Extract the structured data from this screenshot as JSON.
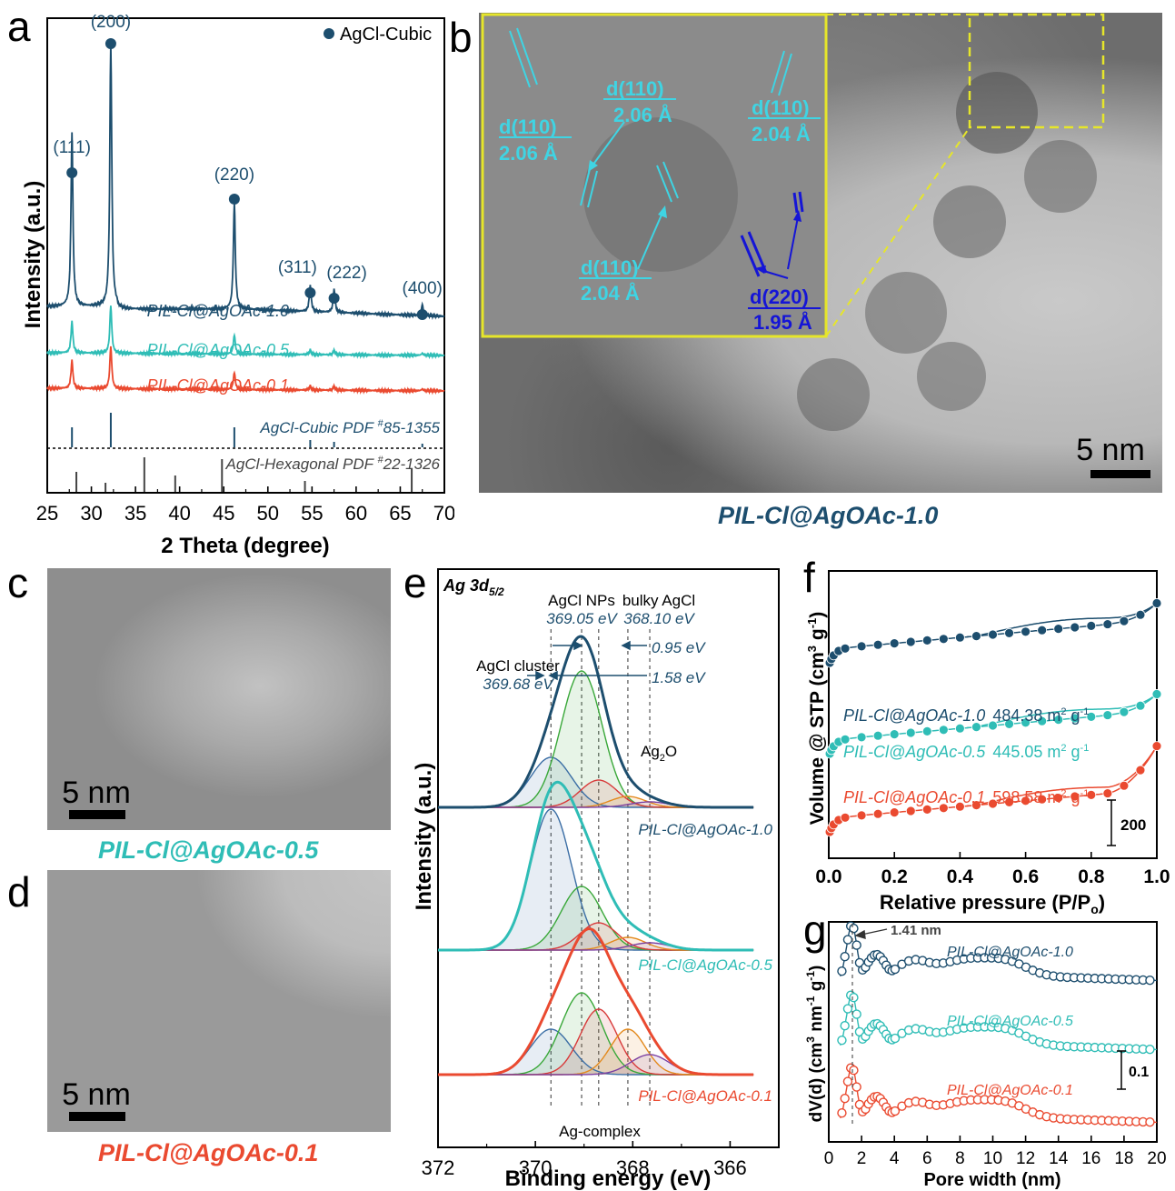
{
  "panels": {
    "a": "a",
    "b": "b",
    "c": "c",
    "d": "d",
    "e": "e",
    "f": "f",
    "g": "g"
  },
  "colors": {
    "navy": "#1d4e6e",
    "teal": "#2fbdb6",
    "red": "#ea4a30",
    "blue": "#1515d6",
    "yellow": "#e6e62a",
    "cyan": "#3fd4e3"
  },
  "panel_b": {
    "scale_bar": "5 nm",
    "caption": "PIL-Cl@AgOAc-1.0",
    "annotations": [
      {
        "top": "d(110)",
        "bottom": "2.06 Å"
      },
      {
        "top": "d(110)",
        "bottom": "2.06 Å"
      },
      {
        "top": "d(110)",
        "bottom": "2.04 Å"
      },
      {
        "top": "d(110)",
        "bottom": "2.04 Å"
      },
      {
        "top": "d(220)",
        "bottom": "1.95 Å"
      }
    ]
  },
  "panel_c": {
    "scale_bar": "5 nm",
    "caption": "PIL-Cl@AgOAc-0.5"
  },
  "panel_d": {
    "scale_bar": "5 nm",
    "caption": "PIL-Cl@AgOAc-0.1"
  },
  "chart_data": [
    {
      "id": "a",
      "type": "line",
      "xlabel": "2 Theta (degree)",
      "ylabel": "Intensity (a.u.)",
      "xlim": [
        25,
        70
      ],
      "xticks": [
        25,
        30,
        35,
        40,
        45,
        50,
        55,
        60,
        65,
        70
      ],
      "legend": "AgCl-Cubic",
      "legend_position": "top-right",
      "series": [
        {
          "name": "PIL-Cl@AgOAc-1.0",
          "color": "#1d4e6e"
        },
        {
          "name": "PIL-Cl@AgOAc-0.5",
          "color": "#2fbdb6"
        },
        {
          "name": "PIL-Cl@AgOAc-0.1",
          "color": "#ea4a30"
        }
      ],
      "peaks": [
        {
          "label": "(111)",
          "x": 27.8
        },
        {
          "label": "(200)",
          "x": 32.2
        },
        {
          "label": "(220)",
          "x": 46.2
        },
        {
          "label": "(311)",
          "x": 54.8
        },
        {
          "label": "(222)",
          "x": 57.5
        },
        {
          "label": "(400)",
          "x": 67.5
        }
      ],
      "references": [
        {
          "name": "AgCl-Cubic PDF #85-1355",
          "prefix": "AgCl-Cubic PDF ",
          "sup": "#",
          "num": "85-1355",
          "lines": [
            27.8,
            32.2,
            46.2,
            54.8,
            57.5,
            67.5
          ]
        },
        {
          "name": "AgCl-Hexagonal PDF #22-1326",
          "prefix": "AgCl-Hexagonal PDF ",
          "sup": "#",
          "num": "22-1326",
          "lines": [
            28.3,
            31.6,
            36.0,
            39.5,
            44.8,
            54.2,
            66.3
          ]
        }
      ]
    },
    {
      "id": "e",
      "type": "line",
      "title": "Ag 3d",
      "title_sub": "5/2",
      "xlabel": "Binding energy (eV)",
      "ylabel": "Intensity (a.u.)",
      "xlim": [
        372,
        365
      ],
      "xticks": [
        372,
        370,
        368,
        366
      ],
      "annotations": {
        "agcl_nps": "AgCl NPs",
        "agcl_nps_energy": "369.05 eV",
        "bulky": "bulky AgCl",
        "bulky_energy": "368.10 eV",
        "cluster": "AgCl cluster",
        "cluster_energy": "369.68 eV",
        "diff1": "0.95 eV",
        "diff2": "1.58 eV",
        "ag2o": "Ag",
        "ag2o_sub": "2",
        "ag2o_end": "O",
        "complex": "Ag-complex"
      },
      "reference_lines": [
        369.68,
        369.05,
        368.7,
        368.1,
        367.65
      ],
      "series": [
        {
          "name": "PIL-Cl@AgOAc-1.0",
          "color": "#1d4e6e"
        },
        {
          "name": "PIL-Cl@AgOAc-0.5",
          "color": "#2fbdb6"
        },
        {
          "name": "PIL-Cl@AgOAc-0.1",
          "color": "#ea4a30"
        }
      ]
    },
    {
      "id": "f",
      "type": "scatter",
      "xlabel": "Relative pressure (P/P",
      "xlabel_sub": "o",
      "xlabel_end": ")",
      "ylabel": "Volume @ STP (cm",
      "ylabel_sup1": "3",
      "ylabel_mid": " g",
      "ylabel_sup2": "-1",
      "ylabel_end": ")",
      "xlim": [
        0.0,
        1.0
      ],
      "xticks": [
        "0.0",
        "0.2",
        "0.4",
        "0.6",
        "0.8",
        "1.0"
      ],
      "scale_bar": "200",
      "series": [
        {
          "name": "PIL-Cl@AgOAc-1.0",
          "area": "484.38 m",
          "area_sup": "2",
          "area_unit": " g",
          "area_sup2": "-1",
          "color": "#1d4e6e"
        },
        {
          "name": "PIL-Cl@AgOAc-0.5",
          "area": "445.05 m",
          "area_sup": "2",
          "area_unit": " g",
          "area_sup2": "-1",
          "color": "#2fbdb6"
        },
        {
          "name": "PIL-Cl@AgOAc-0.1",
          "area": "598.58 m",
          "area_sup": "2",
          "area_unit": " g",
          "area_sup2": "-1",
          "color": "#ea4a30"
        }
      ]
    },
    {
      "id": "g",
      "type": "scatter",
      "xlabel": "Pore width (nm)",
      "ylabel": "dV(d) (cm",
      "ylabel_sup1": "3",
      "ylabel_mid": " nm",
      "ylabel_sup2": "-1",
      "ylabel_mid2": " g",
      "ylabel_sup3": "-1",
      "ylabel_end": ")",
      "xlim": [
        0,
        20
      ],
      "xticks": [
        0,
        2,
        4,
        6,
        8,
        10,
        12,
        14,
        16,
        18,
        20
      ],
      "peak_label": "1.41 nm",
      "scale_bar": "0.1",
      "series": [
        {
          "name": "PIL-Cl@AgOAc-1.0",
          "color": "#1d4e6e"
        },
        {
          "name": "PIL-Cl@AgOAc-0.5",
          "color": "#2fbdb6"
        },
        {
          "name": "PIL-Cl@AgOAc-0.1",
          "color": "#ea4a30"
        }
      ]
    }
  ]
}
